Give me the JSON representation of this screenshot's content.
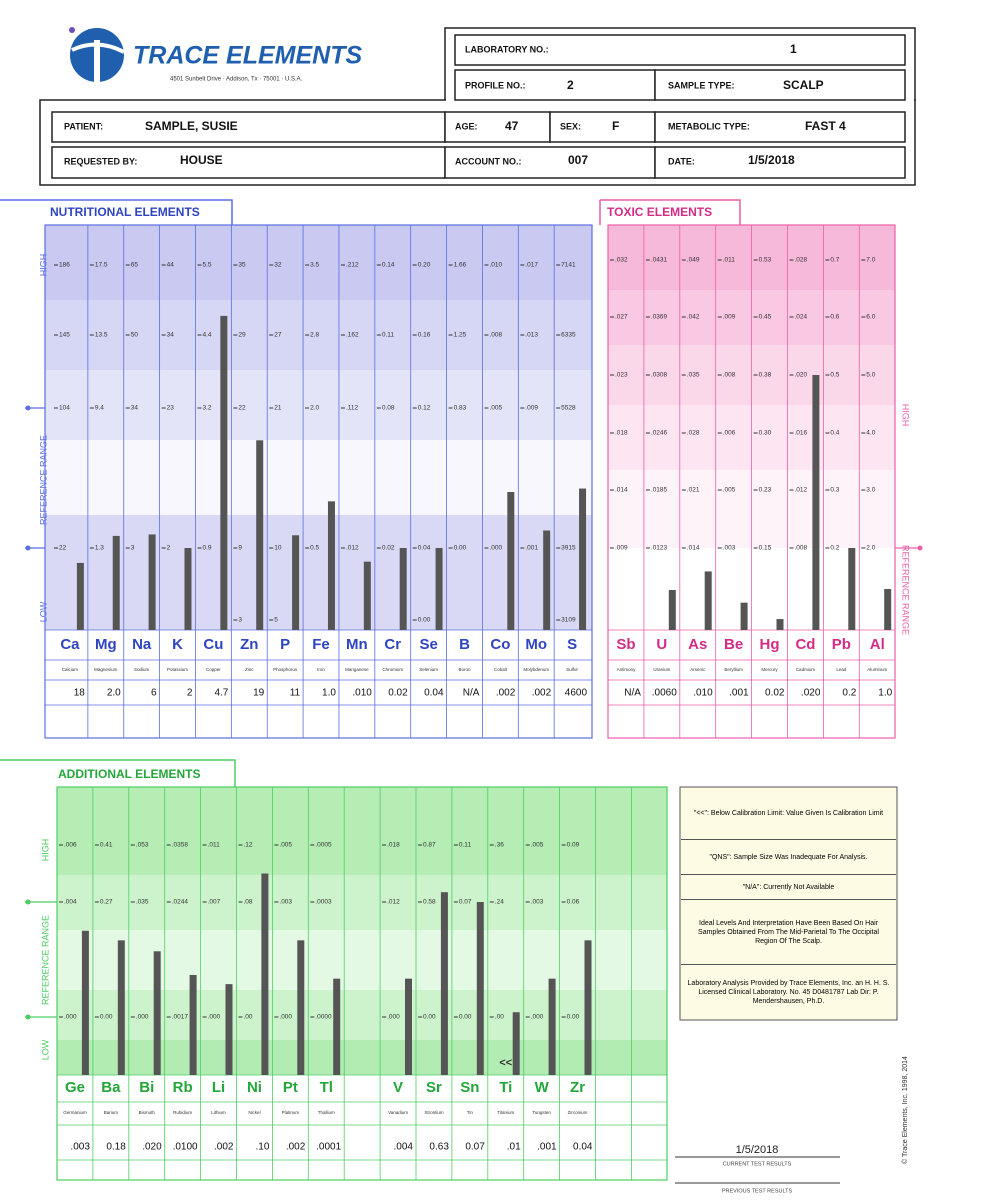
{
  "header": {
    "logo": "TRACE ELEMENTS",
    "address": "4501 Sunbelt Drive · Addison, Tx · 75001 · U.S.A."
  },
  "fields": {
    "lab_no": {
      "label": "LABORATORY NO.:",
      "value": 1
    },
    "profile_no": {
      "label": "PROFILE NO.:",
      "value": 2
    },
    "sample_type": {
      "label": "SAMPLE TYPE:",
      "value": "SCALP"
    },
    "patient": {
      "label": "PATIENT:",
      "value": "SAMPLE, SUSIE"
    },
    "age": {
      "label": "AGE:",
      "value": 47
    },
    "sex": {
      "label": "SEX:",
      "value": "F"
    },
    "metabolic_type": {
      "label": "METABOLIC TYPE:",
      "value": "FAST 4"
    },
    "requested_by": {
      "label": "REQUESTED BY:",
      "value": "HOUSE"
    },
    "account_no": {
      "label": "ACCOUNT NO.:",
      "value": "007"
    },
    "date": {
      "label": "DATE:",
      "value": "1/5/2018"
    }
  },
  "panels": [
    {
      "title": "NUTRITIONAL ELEMENTS",
      "high": "HIGH",
      "reference": "REFERENCE  RANGE",
      "low": "LOW",
      "elements": [
        {
          "symbol": "Ca",
          "name": "Calcium",
          "ticks": [
            186,
            145,
            104,
            22,
            null
          ],
          "result": 18
        },
        {
          "symbol": "Mg",
          "name": "Magnesium",
          "ticks": [
            17.5,
            13.5,
            9.4,
            1.3,
            null
          ],
          "result": {
            "value": 2,
            "label": "2.0"
          }
        },
        {
          "symbol": "Na",
          "name": "Sodium",
          "ticks": [
            65,
            50,
            34,
            3,
            null
          ],
          "result": 6
        },
        {
          "symbol": "K",
          "name": "Potassium",
          "ticks": [
            44,
            34,
            23,
            2,
            null
          ],
          "result": 2
        },
        {
          "symbol": "Cu",
          "name": "Copper",
          "ticks": [
            5.5,
            4.4,
            3.2,
            0.9,
            null
          ],
          "result": 4.7
        },
        {
          "symbol": "Zn",
          "name": "Zinc",
          "ticks": [
            35,
            29,
            22,
            9,
            3
          ],
          "result": 19
        },
        {
          "symbol": "P",
          "name": "Phosphorus",
          "ticks": [
            32,
            27,
            21,
            10,
            5
          ],
          "result": 11
        },
        {
          "symbol": "Fe",
          "name": "Iron",
          "ticks": [
            3.5,
            2.8,
            {
              "value": 2,
              "label": "2.0"
            },
            0.5,
            null
          ],
          "result": {
            "value": 1,
            "label": "1.0"
          }
        },
        {
          "symbol": "Mn",
          "name": "Manganese",
          "ticks": [
            {
              "value": 0.212,
              "label": ".212"
            },
            {
              "value": 0.162,
              "label": ".162"
            },
            {
              "value": 0.112,
              "label": ".112"
            },
            {
              "value": 0.012,
              "label": ".012"
            },
            null
          ],
          "result": {
            "value": 0.01,
            "label": ".010"
          }
        },
        {
          "symbol": "Cr",
          "name": "Chromium",
          "ticks": [
            0.14,
            0.11,
            0.08,
            0.02,
            null
          ],
          "result": 0.02
        },
        {
          "symbol": "Se",
          "name": "Selenium",
          "ticks": [
            {
              "value": 0.2,
              "label": "0.20"
            },
            0.16,
            0.12,
            0.04,
            {
              "value": 0,
              "label": "0.00"
            }
          ],
          "result": 0.04
        },
        {
          "symbol": "B",
          "name": "Boron",
          "ticks": [
            1.66,
            1.25,
            0.83,
            {
              "value": 0,
              "label": "0.00"
            },
            null
          ],
          "result": "N/A"
        },
        {
          "symbol": "Co",
          "name": "Cobalt",
          "ticks": [
            {
              "value": 0.01,
              "label": ".010"
            },
            {
              "value": 0.008,
              "label": ".008"
            },
            {
              "value": 0.005,
              "label": ".005"
            },
            {
              "value": 0,
              "label": ".000"
            },
            null
          ],
          "result": {
            "value": 0.002,
            "label": ".002"
          }
        },
        {
          "symbol": "Mo",
          "name": "Molybdenum",
          "ticks": [
            {
              "value": 0.017,
              "label": ".017"
            },
            {
              "value": 0.013,
              "label": ".013"
            },
            {
              "value": 0.009,
              "label": ".009"
            },
            {
              "value": 0.001,
              "label": ".001"
            },
            null
          ],
          "result": {
            "value": 0.002,
            "label": ".002"
          }
        },
        {
          "symbol": "S",
          "name": "Sulfur",
          "ticks": [
            7141,
            6335,
            5528,
            3915,
            3109
          ],
          "result": 4600
        }
      ]
    },
    {
      "title": "TOXIC ELEMENTS",
      "high": "HIGH",
      "reference": "REFERENCE RANGE",
      "elements": [
        {
          "symbol": "Sb",
          "name": "Antimony",
          "ticks": [
            {
              "value": 0.032,
              "label": ".032"
            },
            {
              "value": 0.027,
              "label": ".027"
            },
            {
              "value": 0.023,
              "label": ".023"
            },
            {
              "value": 0.018,
              "label": ".018"
            },
            {
              "value": 0.014,
              "label": ".014"
            },
            {
              "value": 0.009,
              "label": ".009"
            }
          ],
          "result": "N/A"
        },
        {
          "symbol": "U",
          "name": "Uranium",
          "ticks": [
            {
              "value": 0.0431,
              "label": ".0431"
            },
            {
              "value": 0.0369,
              "label": ".0369"
            },
            {
              "value": 0.0308,
              "label": ".0308"
            },
            {
              "value": 0.0246,
              "label": ".0246"
            },
            {
              "value": 0.0185,
              "label": ".0185"
            },
            {
              "value": 0.0123,
              "label": ".0123"
            }
          ],
          "result": {
            "value": 0.006,
            "label": ".0060"
          }
        },
        {
          "symbol": "As",
          "name": "Arsenic",
          "ticks": [
            {
              "value": 0.049,
              "label": ".049"
            },
            {
              "value": 0.042,
              "label": ".042"
            },
            {
              "value": 0.035,
              "label": ".035"
            },
            {
              "value": 0.028,
              "label": ".028"
            },
            {
              "value": 0.021,
              "label": ".021"
            },
            {
              "value": 0.014,
              "label": ".014"
            }
          ],
          "result": {
            "value": 0.01,
            "label": ".010"
          }
        },
        {
          "symbol": "Be",
          "name": "Beryllium",
          "ticks": [
            {
              "value": 0.011,
              "label": ".011"
            },
            {
              "value": 0.009,
              "label": ".009"
            },
            {
              "value": 0.008,
              "label": ".008"
            },
            {
              "value": 0.006,
              "label": ".006"
            },
            {
              "value": 0.005,
              "label": ".005"
            },
            {
              "value": 0.003,
              "label": ".003"
            }
          ],
          "result": {
            "value": 0.001,
            "label": ".001"
          }
        },
        {
          "symbol": "Hg",
          "name": "Mercury",
          "ticks": [
            0.53,
            0.45,
            0.38,
            {
              "value": 0.3,
              "label": "0.30"
            },
            0.23,
            0.15
          ],
          "result": 0.02
        },
        {
          "symbol": "Cd",
          "name": "Cadmium",
          "ticks": [
            {
              "value": 0.028,
              "label": ".028"
            },
            {
              "value": 0.024,
              "label": ".024"
            },
            {
              "value": 0.02,
              "label": ".020"
            },
            {
              "value": 0.016,
              "label": ".016"
            },
            {
              "value": 0.012,
              "label": ".012"
            },
            {
              "value": 0.008,
              "label": ".008"
            }
          ],
          "result": {
            "value": 0.02,
            "label": ".020"
          }
        },
        {
          "symbol": "Pb",
          "name": "Lead",
          "ticks": [
            0.7,
            0.6,
            0.5,
            0.4,
            0.3,
            0.2
          ],
          "result": 0.2
        },
        {
          "symbol": "Al",
          "name": "Aluminum",
          "ticks": [
            {
              "value": 7,
              "label": "7.0"
            },
            {
              "value": 6,
              "label": "6.0"
            },
            {
              "value": 5,
              "label": "5.0"
            },
            {
              "value": 4,
              "label": "4.0"
            },
            {
              "value": 3,
              "label": "3.0"
            },
            {
              "value": 2,
              "label": "2.0"
            }
          ],
          "result": {
            "value": 1,
            "label": "1.0"
          }
        }
      ]
    },
    {
      "title": "ADDITIONAL ELEMENTS",
      "high": "HIGH",
      "reference": "REFERENCE RANGE",
      "low": "LOW",
      "elements": [
        {
          "symbol": "Ge",
          "name": "Germanium",
          "ticks": [
            {
              "value": 0.006,
              "label": ".006"
            },
            {
              "value": 0.004,
              "label": ".004"
            },
            {
              "value": 0,
              "label": ".000"
            }
          ],
          "result": {
            "value": 0.003,
            "label": ".003"
          }
        },
        {
          "symbol": "Ba",
          "name": "Barium",
          "ticks": [
            0.41,
            0.27,
            {
              "value": 0,
              "label": "0.00"
            }
          ],
          "result": 0.18
        },
        {
          "symbol": "Bi",
          "name": "Bismuth",
          "ticks": [
            {
              "value": 0.053,
              "label": ".053"
            },
            {
              "value": 0.035,
              "label": ".035"
            },
            {
              "value": 0,
              "label": ".000"
            }
          ],
          "result": {
            "value": 0.02,
            "label": ".020"
          }
        },
        {
          "symbol": "Rb",
          "name": "Rubidium",
          "ticks": [
            {
              "value": 0.0358,
              "label": ".0358"
            },
            {
              "value": 0.0244,
              "label": ".0244"
            },
            {
              "value": 0.0017,
              "label": ".0017"
            }
          ],
          "result": {
            "value": 0.01,
            "label": ".0100"
          }
        },
        {
          "symbol": "Li",
          "name": "Lithium",
          "ticks": [
            {
              "value": 0.011,
              "label": ".011"
            },
            {
              "value": 0.007,
              "label": ".007"
            },
            {
              "value": 0,
              "label": ".000"
            }
          ],
          "result": {
            "value": 0.002,
            "label": ".002"
          }
        },
        {
          "symbol": "Ni",
          "name": "Nickel",
          "ticks": [
            {
              "value": 0.12,
              "label": ".12"
            },
            {
              "value": 0.08,
              "label": ".08"
            },
            {
              "value": 0,
              "label": ".00"
            }
          ],
          "result": {
            "value": 0.1,
            "label": ".10"
          }
        },
        {
          "symbol": "Pt",
          "name": "Platinum",
          "ticks": [
            {
              "value": 0.005,
              "label": ".005"
            },
            {
              "value": 0.003,
              "label": ".003"
            },
            {
              "value": 0,
              "label": ".000"
            }
          ],
          "result": {
            "value": 0.002,
            "label": ".002"
          }
        },
        {
          "symbol": "Tl",
          "name": "Thallium",
          "ticks": [
            {
              "value": 0.0005,
              "label": ".0005"
            },
            {
              "value": 0.0003,
              "label": ".0003"
            },
            {
              "value": 0,
              "label": ".0000"
            }
          ],
          "result": {
            "value": 0.0001,
            "label": ".0001"
          }
        },
        null,
        {
          "symbol": "V",
          "name": "Vanadium",
          "ticks": [
            {
              "value": 0.018,
              "label": ".018"
            },
            {
              "value": 0.012,
              "label": ".012"
            },
            {
              "value": 0,
              "label": ".000"
            }
          ],
          "result": {
            "value": 0.004,
            "label": ".004"
          }
        },
        {
          "symbol": "Sr",
          "name": "Strontium",
          "ticks": [
            0.87,
            0.58,
            {
              "value": 0,
              "label": "0.00"
            }
          ],
          "result": 0.63
        },
        {
          "symbol": "Sn",
          "name": "Tin",
          "ticks": [
            0.11,
            0.07,
            {
              "value": 0,
              "label": "0.00"
            }
          ],
          "result": 0.07
        },
        {
          "symbol": "Ti",
          "name": "Titanium",
          "ticks": [
            {
              "value": 0.36,
              "label": ".36"
            },
            {
              "value": 0.24,
              "label": ".24"
            },
            {
              "value": 0,
              "label": ".00"
            }
          ],
          "result": {
            "value": 0.01,
            "label": ".01"
          },
          "marker": "<<"
        },
        {
          "symbol": "W",
          "name": "Tungsten",
          "ticks": [
            {
              "value": 0.005,
              "label": ".005"
            },
            {
              "value": 0.003,
              "label": ".003"
            },
            {
              "value": 0,
              "label": ".000"
            }
          ],
          "result": {
            "value": 0.001,
            "label": ".001"
          }
        },
        {
          "symbol": "Zr",
          "name": "Zirconium",
          "ticks": [
            0.09,
            0.06,
            {
              "value": 0,
              "label": "0.00"
            }
          ],
          "result": 0.04
        },
        null,
        null
      ]
    }
  ],
  "notes": [
    "\"<<\": Below Calibration Limit: Value Given Is Calibration Limit",
    "\"QNS\": Sample Size Was Inadequate For Analysis.",
    "\"N/A\": Currently Not Available",
    "Ideal Levels And Interpretation Have Been Based On Hair Samples Obtained From The Mid-Parietal To The Occipital Region Of The Scalp.",
    "Laboratory Analysis Provided by Trace Elements, Inc. an H. H. S. Licensed Clinical Laboratory. No. 45 D0481787  Lab Dir: P. Mendershausen, Ph.D."
  ],
  "footer": {
    "current_date": "1/5/2018",
    "current_label": "CURRENT TEST RESULTS",
    "previous_label": "PREVIOUS TEST RESULTS",
    "copyright": "© Trace Elements, Inc. 1998, 2014"
  }
}
